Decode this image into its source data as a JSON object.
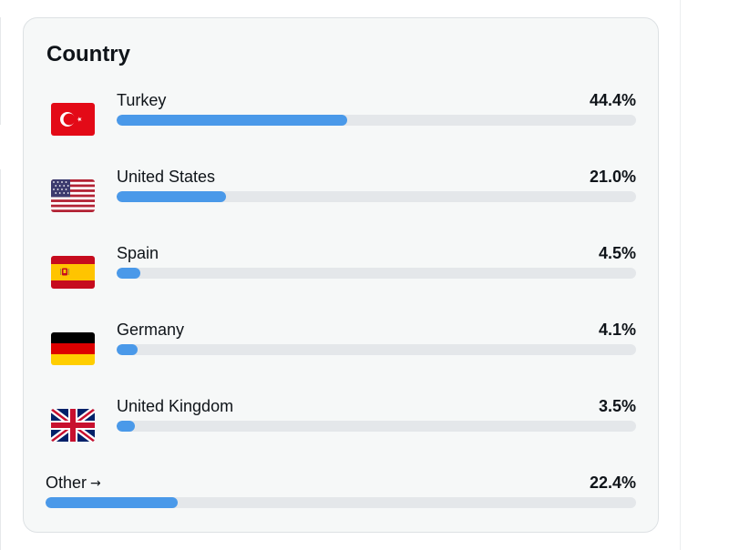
{
  "card": {
    "title": "Country",
    "countries": [
      {
        "name": "Turkey",
        "value_label": "44.4%",
        "percent": 44.4,
        "flag_icon": "turkey-flag-icon"
      },
      {
        "name": "United States",
        "value_label": "21.0%",
        "percent": 21.0,
        "flag_icon": "usa-flag-icon"
      },
      {
        "name": "Spain",
        "value_label": "4.5%",
        "percent": 4.5,
        "flag_icon": "spain-flag-icon"
      },
      {
        "name": "Germany",
        "value_label": "4.1%",
        "percent": 4.1,
        "flag_icon": "germany-flag-icon"
      },
      {
        "name": "United Kingdom",
        "value_label": "3.5%",
        "percent": 3.5,
        "flag_icon": "uk-flag-icon"
      }
    ],
    "other": {
      "label": "Other",
      "arrow": "→",
      "value_label": "22.4%",
      "percent": 22.4
    }
  },
  "colors": {
    "bar_fill": "#4a99e9",
    "bar_track": "#e4e7ea",
    "card_bg": "#f6f8f8"
  }
}
